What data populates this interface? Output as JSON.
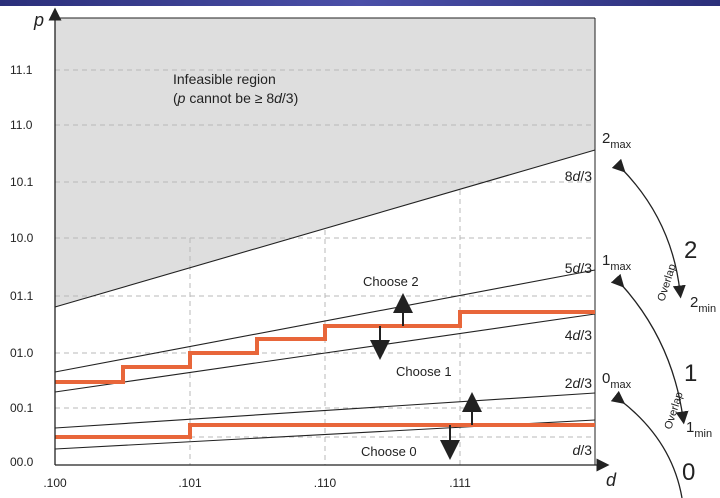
{
  "colors": {
    "infeasible_fill": "#dedede",
    "staircase": "#e8663a",
    "axis": "#222222",
    "grid": "#b8b8b8",
    "header_bar": "#3a3e94"
  },
  "axes": {
    "y_label": "p",
    "x_label": "d",
    "y_ticks": [
      "11.1",
      "11.0",
      "10.1",
      "10.0",
      "01.1",
      "01.0",
      "00.1",
      "00.0"
    ],
    "x_ticks": [
      ".100",
      ".101",
      ".110",
      ".111"
    ]
  },
  "infeasible": {
    "title": "Infeasible region",
    "note_prefix": "(",
    "note_var": "p",
    "note_middle": " cannot be ≥ 8",
    "note_var2": "d",
    "note_suffix": "/3)"
  },
  "line_labels": {
    "l83_num": "8",
    "l83_den": "/3",
    "l53_num": "5",
    "l53_den": "/3",
    "l43_num": "4",
    "l43_den": "/3",
    "l23_num": "2",
    "l23_den": "/3",
    "l13_num": "",
    "l13_den": "/3",
    "var": "d"
  },
  "choices": {
    "choose2": "Choose 2",
    "choose1": "Choose 1",
    "choose0": "Choose 0"
  },
  "bounds": {
    "two_max_main": "2",
    "two_max_sub": "max",
    "one_max_main": "1",
    "one_max_sub": "max",
    "zero_max_main": "0",
    "zero_max_sub": "max",
    "two_min_main": "2",
    "two_min_sub": "min",
    "one_min_main": "1",
    "one_min_sub": "min"
  },
  "overlap": {
    "label": "Overlap",
    "big2": "2",
    "big1": "1",
    "big0": "0"
  }
}
